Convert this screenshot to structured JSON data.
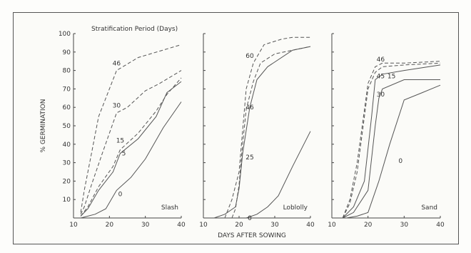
{
  "figure": {
    "legend_title": "Stratification Period (Days)",
    "ylabel": "% GERMINATION",
    "xlabel": "DAYS AFTER SOWING",
    "y_ticks": [
      "100",
      "90",
      "80",
      "70",
      "60",
      "50",
      "40",
      "30",
      "20",
      "10"
    ],
    "x_ticks": [
      "10",
      "20",
      "30",
      "40"
    ]
  },
  "chart_data": [
    {
      "type": "line",
      "panel_label": "Slash",
      "xlim": [
        10,
        40
      ],
      "ylim": [
        0,
        100
      ],
      "series": [
        {
          "name": "46",
          "label_at": [
            22,
            84
          ],
          "dashed": true,
          "x": [
            12,
            13,
            15,
            17,
            22,
            28,
            40
          ],
          "y": [
            3,
            15,
            35,
            55,
            80,
            87,
            94
          ]
        },
        {
          "name": "30",
          "label_at": [
            22,
            61
          ],
          "dashed": true,
          "x": [
            12,
            13,
            15,
            18,
            22,
            25,
            30,
            34,
            40
          ],
          "y": [
            2,
            6,
            18,
            35,
            57,
            60,
            69,
            73,
            80
          ]
        },
        {
          "name": "15",
          "label_at": [
            23,
            42
          ],
          "dashed": true,
          "x": [
            12,
            14,
            17,
            21,
            23,
            28,
            33,
            36,
            40
          ],
          "y": [
            1,
            6,
            17,
            28,
            37,
            46,
            58,
            67,
            76
          ]
        },
        {
          "name": "5",
          "label_at": [
            24,
            35
          ],
          "dashed": false,
          "x": [
            12,
            14,
            17,
            21,
            23,
            28,
            33,
            36,
            40
          ],
          "y": [
            1,
            5,
            15,
            25,
            35,
            43,
            55,
            68,
            74
          ]
        },
        {
          "name": "0",
          "label_at": [
            23,
            13
          ],
          "dashed": false,
          "x": [
            12,
            16,
            19,
            22,
            26,
            30,
            35,
            40
          ],
          "y": [
            0,
            2,
            5,
            15,
            22,
            32,
            49,
            63
          ]
        }
      ]
    },
    {
      "type": "line",
      "panel_label": "Loblolly",
      "xlim": [
        10,
        40
      ],
      "ylim": [
        0,
        100
      ],
      "series": [
        {
          "name": "60",
          "label_at": [
            23,
            88
          ],
          "dashed": true,
          "x": [
            16,
            18,
            20,
            22,
            24,
            27,
            32,
            35,
            40
          ],
          "y": [
            0,
            10,
            25,
            70,
            84,
            94,
            97,
            98,
            98
          ]
        },
        {
          "name": "46",
          "label_at": [
            23,
            60
          ],
          "dashed": true,
          "x": [
            18,
            19,
            20,
            21,
            22,
            24,
            26,
            30,
            40
          ],
          "y": [
            0,
            5,
            18,
            40,
            59,
            74,
            84,
            89,
            93
          ]
        },
        {
          "name": "25",
          "label_at": [
            23,
            33
          ],
          "dashed": false,
          "x": [
            13,
            16,
            19,
            20,
            21,
            23,
            25,
            28,
            35,
            40
          ],
          "y": [
            0,
            2,
            6,
            16,
            35,
            60,
            75,
            82,
            91,
            93
          ]
        },
        {
          "name": "0",
          "label_at": [
            23,
            0
          ],
          "dashed": false,
          "x": [
            22,
            25,
            28,
            31,
            35,
            40
          ],
          "y": [
            0,
            2,
            6,
            12,
            28,
            47
          ]
        }
      ]
    },
    {
      "type": "line",
      "panel_label": "Sand",
      "xlim": [
        10,
        40
      ],
      "ylim": [
        0,
        100
      ],
      "series": [
        {
          "name": "46",
          "label_at": [
            23.5,
            86
          ],
          "dashed": true,
          "x": [
            13,
            15,
            17,
            20,
            22,
            24,
            30,
            40
          ],
          "y": [
            0,
            10,
            30,
            73,
            82,
            84,
            84,
            85
          ]
        },
        {
          "name": "45",
          "label_at": [
            23.5,
            77
          ],
          "dashed": true,
          "x": [
            13,
            15,
            17,
            20,
            22,
            24,
            30,
            40
          ],
          "y": [
            0,
            8,
            25,
            70,
            79,
            82,
            83,
            84
          ]
        },
        {
          "name": "15",
          "label_at": [
            26.5,
            77
          ],
          "dashed": false,
          "x": [
            13,
            16,
            19,
            21,
            22,
            24,
            30,
            40
          ],
          "y": [
            0,
            6,
            20,
            55,
            75,
            78,
            80,
            83
          ]
        },
        {
          "name": "30",
          "label_at": [
            23.5,
            67
          ],
          "dashed": false,
          "x": [
            13,
            16,
            20,
            22,
            23,
            24,
            30,
            40
          ],
          "y": [
            0,
            3,
            15,
            50,
            65,
            70,
            75,
            75
          ]
        },
        {
          "name": "0",
          "label_at": [
            29,
            31
          ],
          "dashed": false,
          "x": [
            14,
            17,
            20,
            23,
            26,
            30,
            35,
            40
          ],
          "y": [
            0,
            1,
            3,
            20,
            40,
            64,
            68,
            72
          ]
        }
      ]
    }
  ]
}
